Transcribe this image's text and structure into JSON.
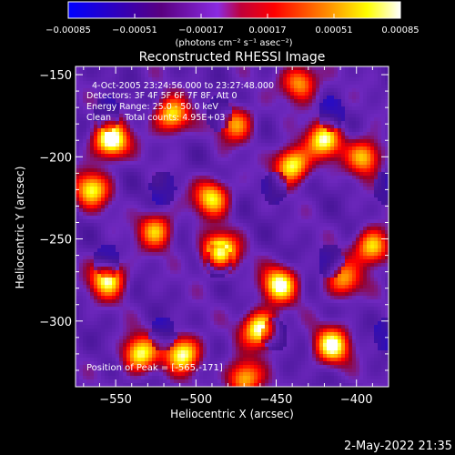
{
  "chart_data": {
    "type": "heatmap",
    "title": "Reconstructed RHESSI Image",
    "xlabel": "Heliocentric X (arcsec)",
    "ylabel": "Heliocentric Y (arcsec)",
    "xlim": [
      -575,
      -380
    ],
    "ylim": [
      -340,
      -145
    ],
    "x_ticks": [
      -550,
      -500,
      -450,
      -400
    ],
    "x_tick_labels": [
      "−550",
      "−500",
      "−450",
      "−400"
    ],
    "y_ticks": [
      -150,
      -200,
      -250,
      -300
    ],
    "y_tick_labels": [
      "−150",
      "−200",
      "−250",
      "−300"
    ],
    "colorbar": {
      "range": [
        -0.00085,
        0.00085
      ],
      "ticks": [
        -0.00085,
        -0.00051,
        -0.00017,
        0.00017,
        0.00051,
        0.00085
      ],
      "tick_labels": [
        "−0.00085",
        "−0.00051",
        "−0.00017",
        "0.00017",
        "0.00051",
        "0.00085"
      ],
      "unit_label": "(photons cm⁻² s⁻¹ asec⁻²)",
      "colors": [
        "#0000ff",
        "#5a0080",
        "#8a2be2",
        "#ff0000",
        "#ff8c00",
        "#ffff00",
        "#ffffff"
      ]
    },
    "annotations": [
      "4-Oct-2005 23:24:56.000 to 23:27:48.000",
      "Detectors: 3F 4F 5F 6F 7F 8F, Att 0",
      "Energy Range: 25.0 - 50.0 keV",
      "Clean     Total counts: 4.95E+03"
    ],
    "peak_label": "Position of Peak = [-565,-171]",
    "peak": [
      -565,
      -171
    ],
    "bright_sources": [
      {
        "x": -553,
        "y": -190,
        "v": 0.95
      },
      {
        "x": -485,
        "y": -258,
        "v": 0.95
      },
      {
        "x": -460,
        "y": -305,
        "v": 0.85
      },
      {
        "x": -448,
        "y": -278,
        "v": 0.8
      },
      {
        "x": -535,
        "y": -320,
        "v": 0.75
      },
      {
        "x": -555,
        "y": -275,
        "v": 0.75
      },
      {
        "x": -508,
        "y": -320,
        "v": 0.8
      },
      {
        "x": -415,
        "y": -315,
        "v": 0.8
      },
      {
        "x": -440,
        "y": -205,
        "v": 0.8
      },
      {
        "x": -420,
        "y": -190,
        "v": 0.75
      },
      {
        "x": -515,
        "y": -175,
        "v": 0.7
      },
      {
        "x": -490,
        "y": -225,
        "v": 0.7
      },
      {
        "x": -390,
        "y": -255,
        "v": 0.7
      },
      {
        "x": -435,
        "y": -155,
        "v": 0.6
      },
      {
        "x": -565,
        "y": -220,
        "v": 0.7
      },
      {
        "x": -525,
        "y": -245,
        "v": 0.6
      },
      {
        "x": -470,
        "y": -335,
        "v": 0.65
      },
      {
        "x": -395,
        "y": -200,
        "v": 0.65
      },
      {
        "x": -408,
        "y": -275,
        "v": 0.55
      },
      {
        "x": -475,
        "y": -180,
        "v": 0.55
      }
    ]
  },
  "footer": {
    "date": "2-May-2022 21:35"
  }
}
